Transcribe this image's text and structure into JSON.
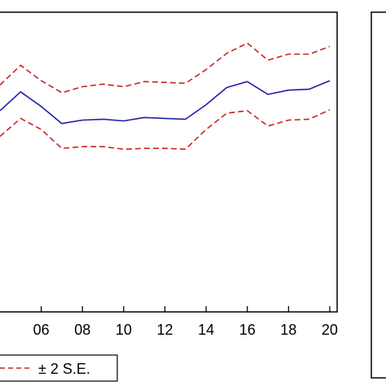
{
  "chart_data": {
    "type": "line",
    "xlim": [
      4,
      20.2
    ],
    "ylim": [
      -0.5,
      3.0
    ],
    "x_ticks": [
      6,
      8,
      10,
      12,
      14,
      16,
      18,
      20
    ],
    "x_tick_labels": [
      "06",
      "08",
      "10",
      "12",
      "14",
      "16",
      "18",
      "20"
    ],
    "grid": false,
    "legend": {
      "placement": "bottom-left",
      "entries": [
        "± 2 S.E."
      ]
    },
    "colors": {
      "estimate": "#1f1fa8",
      "bands": "#cc2222",
      "axis": "#000000"
    },
    "x": [
      4,
      5,
      6,
      7,
      8,
      9,
      10,
      11,
      12,
      13,
      14,
      15,
      16,
      17,
      18,
      19,
      20
    ],
    "series": [
      {
        "role": "estimate",
        "style": "solid",
        "values": [
          1.85,
          2.07,
          1.9,
          1.7,
          1.74,
          1.75,
          1.73,
          1.77,
          1.76,
          1.75,
          1.92,
          2.12,
          2.19,
          2.04,
          2.09,
          2.1,
          2.2
        ]
      },
      {
        "name": "± 2 S.E.",
        "role": "upper",
        "style": "dashed",
        "values": [
          2.15,
          2.38,
          2.2,
          2.06,
          2.13,
          2.16,
          2.13,
          2.19,
          2.18,
          2.17,
          2.33,
          2.52,
          2.64,
          2.44,
          2.51,
          2.51,
          2.6
        ]
      },
      {
        "name": "± 2 S.E.",
        "role": "lower",
        "style": "dashed",
        "values": [
          1.55,
          1.76,
          1.63,
          1.41,
          1.43,
          1.43,
          1.4,
          1.41,
          1.41,
          1.4,
          1.63,
          1.82,
          1.85,
          1.67,
          1.74,
          1.75,
          1.86
        ]
      }
    ]
  }
}
